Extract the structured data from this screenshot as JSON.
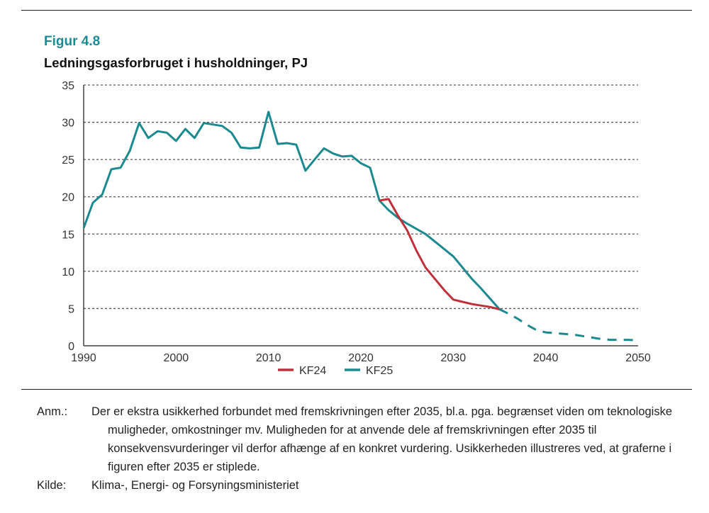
{
  "header": {
    "figure_label": "Figur 4.8",
    "title": "Ledningsgasforbruget i husholdninger, PJ"
  },
  "chart_data": {
    "type": "line",
    "title": "Ledningsgasforbruget i husholdninger, PJ",
    "xlabel": "",
    "ylabel": "",
    "xlim": [
      1990,
      2050
    ],
    "ylim": [
      0,
      35
    ],
    "x_ticks": [
      1990,
      2000,
      2010,
      2020,
      2030,
      2040,
      2050
    ],
    "y_ticks": [
      0,
      5,
      10,
      15,
      20,
      25,
      30,
      35
    ],
    "grid": "horizontal dashed",
    "legend_position": "bottom-center",
    "series": [
      {
        "name": "KF24",
        "color": "#c0303a",
        "style": "solid",
        "points": [
          [
            2022,
            19.5
          ],
          [
            2023,
            19.7
          ],
          [
            2024,
            17.5
          ],
          [
            2025,
            15.5
          ],
          [
            2026,
            12.8
          ],
          [
            2027,
            10.5
          ],
          [
            2028,
            9.0
          ],
          [
            2029,
            7.5
          ],
          [
            2030,
            6.2
          ],
          [
            2031,
            5.9
          ],
          [
            2032,
            5.6
          ],
          [
            2033,
            5.4
          ],
          [
            2034,
            5.2
          ],
          [
            2035,
            4.9
          ]
        ]
      },
      {
        "name": "KF25",
        "color": "#1b8a8f",
        "style": "solid",
        "points": [
          [
            1990,
            15.8
          ],
          [
            1991,
            19.2
          ],
          [
            1992,
            20.3
          ],
          [
            1993,
            23.7
          ],
          [
            1994,
            23.9
          ],
          [
            1995,
            26.2
          ],
          [
            1996,
            29.9
          ],
          [
            1997,
            27.9
          ],
          [
            1998,
            28.8
          ],
          [
            1999,
            28.6
          ],
          [
            2000,
            27.5
          ],
          [
            2001,
            29.1
          ],
          [
            2002,
            27.9
          ],
          [
            2003,
            29.9
          ],
          [
            2004,
            29.7
          ],
          [
            2005,
            29.5
          ],
          [
            2006,
            28.6
          ],
          [
            2007,
            26.6
          ],
          [
            2008,
            26.5
          ],
          [
            2009,
            26.6
          ],
          [
            2010,
            31.4
          ],
          [
            2011,
            27.1
          ],
          [
            2012,
            27.2
          ],
          [
            2013,
            27.0
          ],
          [
            2014,
            23.5
          ],
          [
            2015,
            25.0
          ],
          [
            2016,
            26.5
          ],
          [
            2017,
            25.8
          ],
          [
            2018,
            25.4
          ],
          [
            2019,
            25.5
          ],
          [
            2020,
            24.5
          ],
          [
            2021,
            23.9
          ],
          [
            2022,
            19.5
          ],
          [
            2023,
            18.2
          ],
          [
            2024,
            17.2
          ],
          [
            2025,
            16.4
          ],
          [
            2026,
            15.7
          ],
          [
            2027,
            15.0
          ],
          [
            2028,
            14.0
          ],
          [
            2029,
            13.0
          ],
          [
            2030,
            12.0
          ],
          [
            2031,
            10.5
          ],
          [
            2032,
            9.0
          ],
          [
            2033,
            7.7
          ],
          [
            2034,
            6.3
          ],
          [
            2035,
            4.9
          ]
        ]
      },
      {
        "name": "KF25 (efter 2035, stiplet)",
        "legend": false,
        "color": "#1b8a8f",
        "style": "dashed",
        "points": [
          [
            2035,
            4.9
          ],
          [
            2036,
            4.3
          ],
          [
            2037,
            3.6
          ],
          [
            2038,
            2.8
          ],
          [
            2039,
            2.1
          ],
          [
            2040,
            1.8
          ],
          [
            2041,
            1.7
          ],
          [
            2042,
            1.6
          ],
          [
            2043,
            1.5
          ],
          [
            2044,
            1.3
          ],
          [
            2045,
            1.1
          ],
          [
            2046,
            0.9
          ],
          [
            2047,
            0.8
          ],
          [
            2048,
            0.8
          ],
          [
            2049,
            0.8
          ],
          [
            2050,
            0.7
          ]
        ]
      }
    ]
  },
  "notes": {
    "anm_label": "Anm.:",
    "anm_text": "Der er ekstra usikkerhed forbundet med fremskrivningen efter 2035, bl.a. pga. begrænset viden om teknologiske muligheder, omkostninger mv. Muligheden for at anvende dele af fremskrivningen efter 2035 til konsekvensvurderinger vil derfor afhænge af en konkret vurdering. Usikkerheden illustreres ved, at graferne i figuren efter 2035 er stiplede.",
    "kilde_label": "Kilde:",
    "kilde_text": "Klima-, Energi- og Forsyningsministeriet"
  }
}
